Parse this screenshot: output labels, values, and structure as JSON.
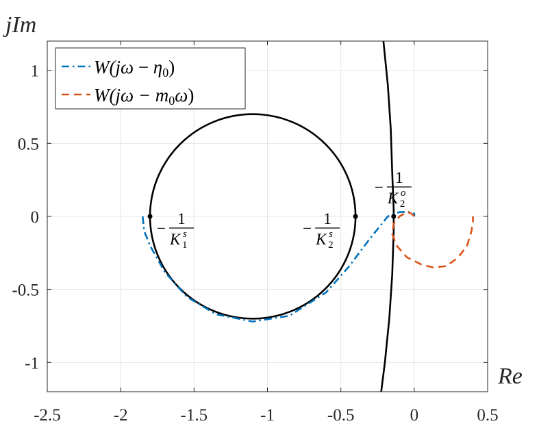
{
  "chart_data": {
    "type": "line",
    "xlabel": "Re",
    "ylabel": "jIm",
    "xlim": [
      -2.5,
      0.5
    ],
    "ylim": [
      -1.2,
      1.2
    ],
    "x_ticks": [
      -2.5,
      -2,
      -1.5,
      -1,
      -0.5,
      0,
      0.5
    ],
    "x_tick_labels": [
      "-2.5",
      "-2",
      "-1.5",
      "-1",
      "-0.5",
      "0",
      "0.5"
    ],
    "y_ticks": [
      -1,
      -0.5,
      0,
      0.5,
      1
    ],
    "y_tick_labels": [
      "-1",
      "-0.5",
      "0",
      "0.5",
      "1"
    ],
    "grid": true,
    "legend_position": "top-left",
    "legend": [
      {
        "label_parts": [
          "W(j",
          "ω",
          " − ",
          "η",
          "0",
          ")"
        ],
        "style": "dash-dot",
        "color": "#0072BD"
      },
      {
        "label_parts": [
          "W(j",
          "ω",
          " − m",
          "0",
          "ω",
          ")"
        ],
        "style": "dashed",
        "color": "#D95319"
      }
    ],
    "series": [
      {
        "style": "dash-dot",
        "color": "#0072BD",
        "x": [
          -1.85,
          -1.84,
          -1.8,
          -1.7,
          -1.55,
          -1.35,
          -1.1,
          -0.85,
          -0.6,
          -0.45,
          -0.3,
          -0.18,
          -0.1,
          -0.04,
          0.0,
          0.0
        ],
        "y": [
          0.0,
          -0.1,
          -0.2,
          -0.38,
          -0.55,
          -0.67,
          -0.72,
          -0.68,
          -0.52,
          -0.35,
          -0.15,
          0.0,
          0.03,
          0.03,
          0.02,
          0.0
        ]
      },
      {
        "style": "dashed",
        "color": "#D95319",
        "x": [
          0.0,
          -0.02,
          -0.05,
          -0.1,
          -0.14,
          -0.15,
          -0.12,
          -0.05,
          0.05,
          0.13,
          0.22,
          0.3,
          0.36,
          0.39,
          0.4,
          0.4
        ],
        "y": [
          0.0,
          0.02,
          0.03,
          0.0,
          -0.05,
          -0.12,
          -0.2,
          -0.28,
          -0.33,
          -0.35,
          -0.34,
          -0.28,
          -0.2,
          -0.1,
          -0.03,
          0.0
        ]
      }
    ],
    "circle": {
      "center": [
        -1.1,
        0.0
      ],
      "radius": 0.7,
      "color": "#000000"
    },
    "boundary_curve": {
      "color": "#000000",
      "x": [
        -0.21,
        -0.18,
        -0.16,
        -0.15,
        -0.14,
        -0.14,
        -0.15,
        -0.17,
        -0.2,
        -0.225
      ],
      "y": [
        1.2,
        0.9,
        0.6,
        0.3,
        0.05,
        -0.1,
        -0.4,
        -0.7,
        -1.0,
        -1.2
      ]
    },
    "points": [
      {
        "x": -1.8,
        "y": 0.0,
        "label_sub": "1",
        "label_sup": "s",
        "label_side": "right-below"
      },
      {
        "x": -0.4,
        "y": 0.0,
        "label_sub": "2",
        "label_sup": "s",
        "label_side": "left-above"
      },
      {
        "x": -0.14,
        "y": 0.0,
        "label_sub": "2",
        "label_sup": "o",
        "label_side": "above"
      }
    ],
    "point_label": {
      "minus": "−",
      "numerator": "1",
      "letter": "K"
    }
  }
}
